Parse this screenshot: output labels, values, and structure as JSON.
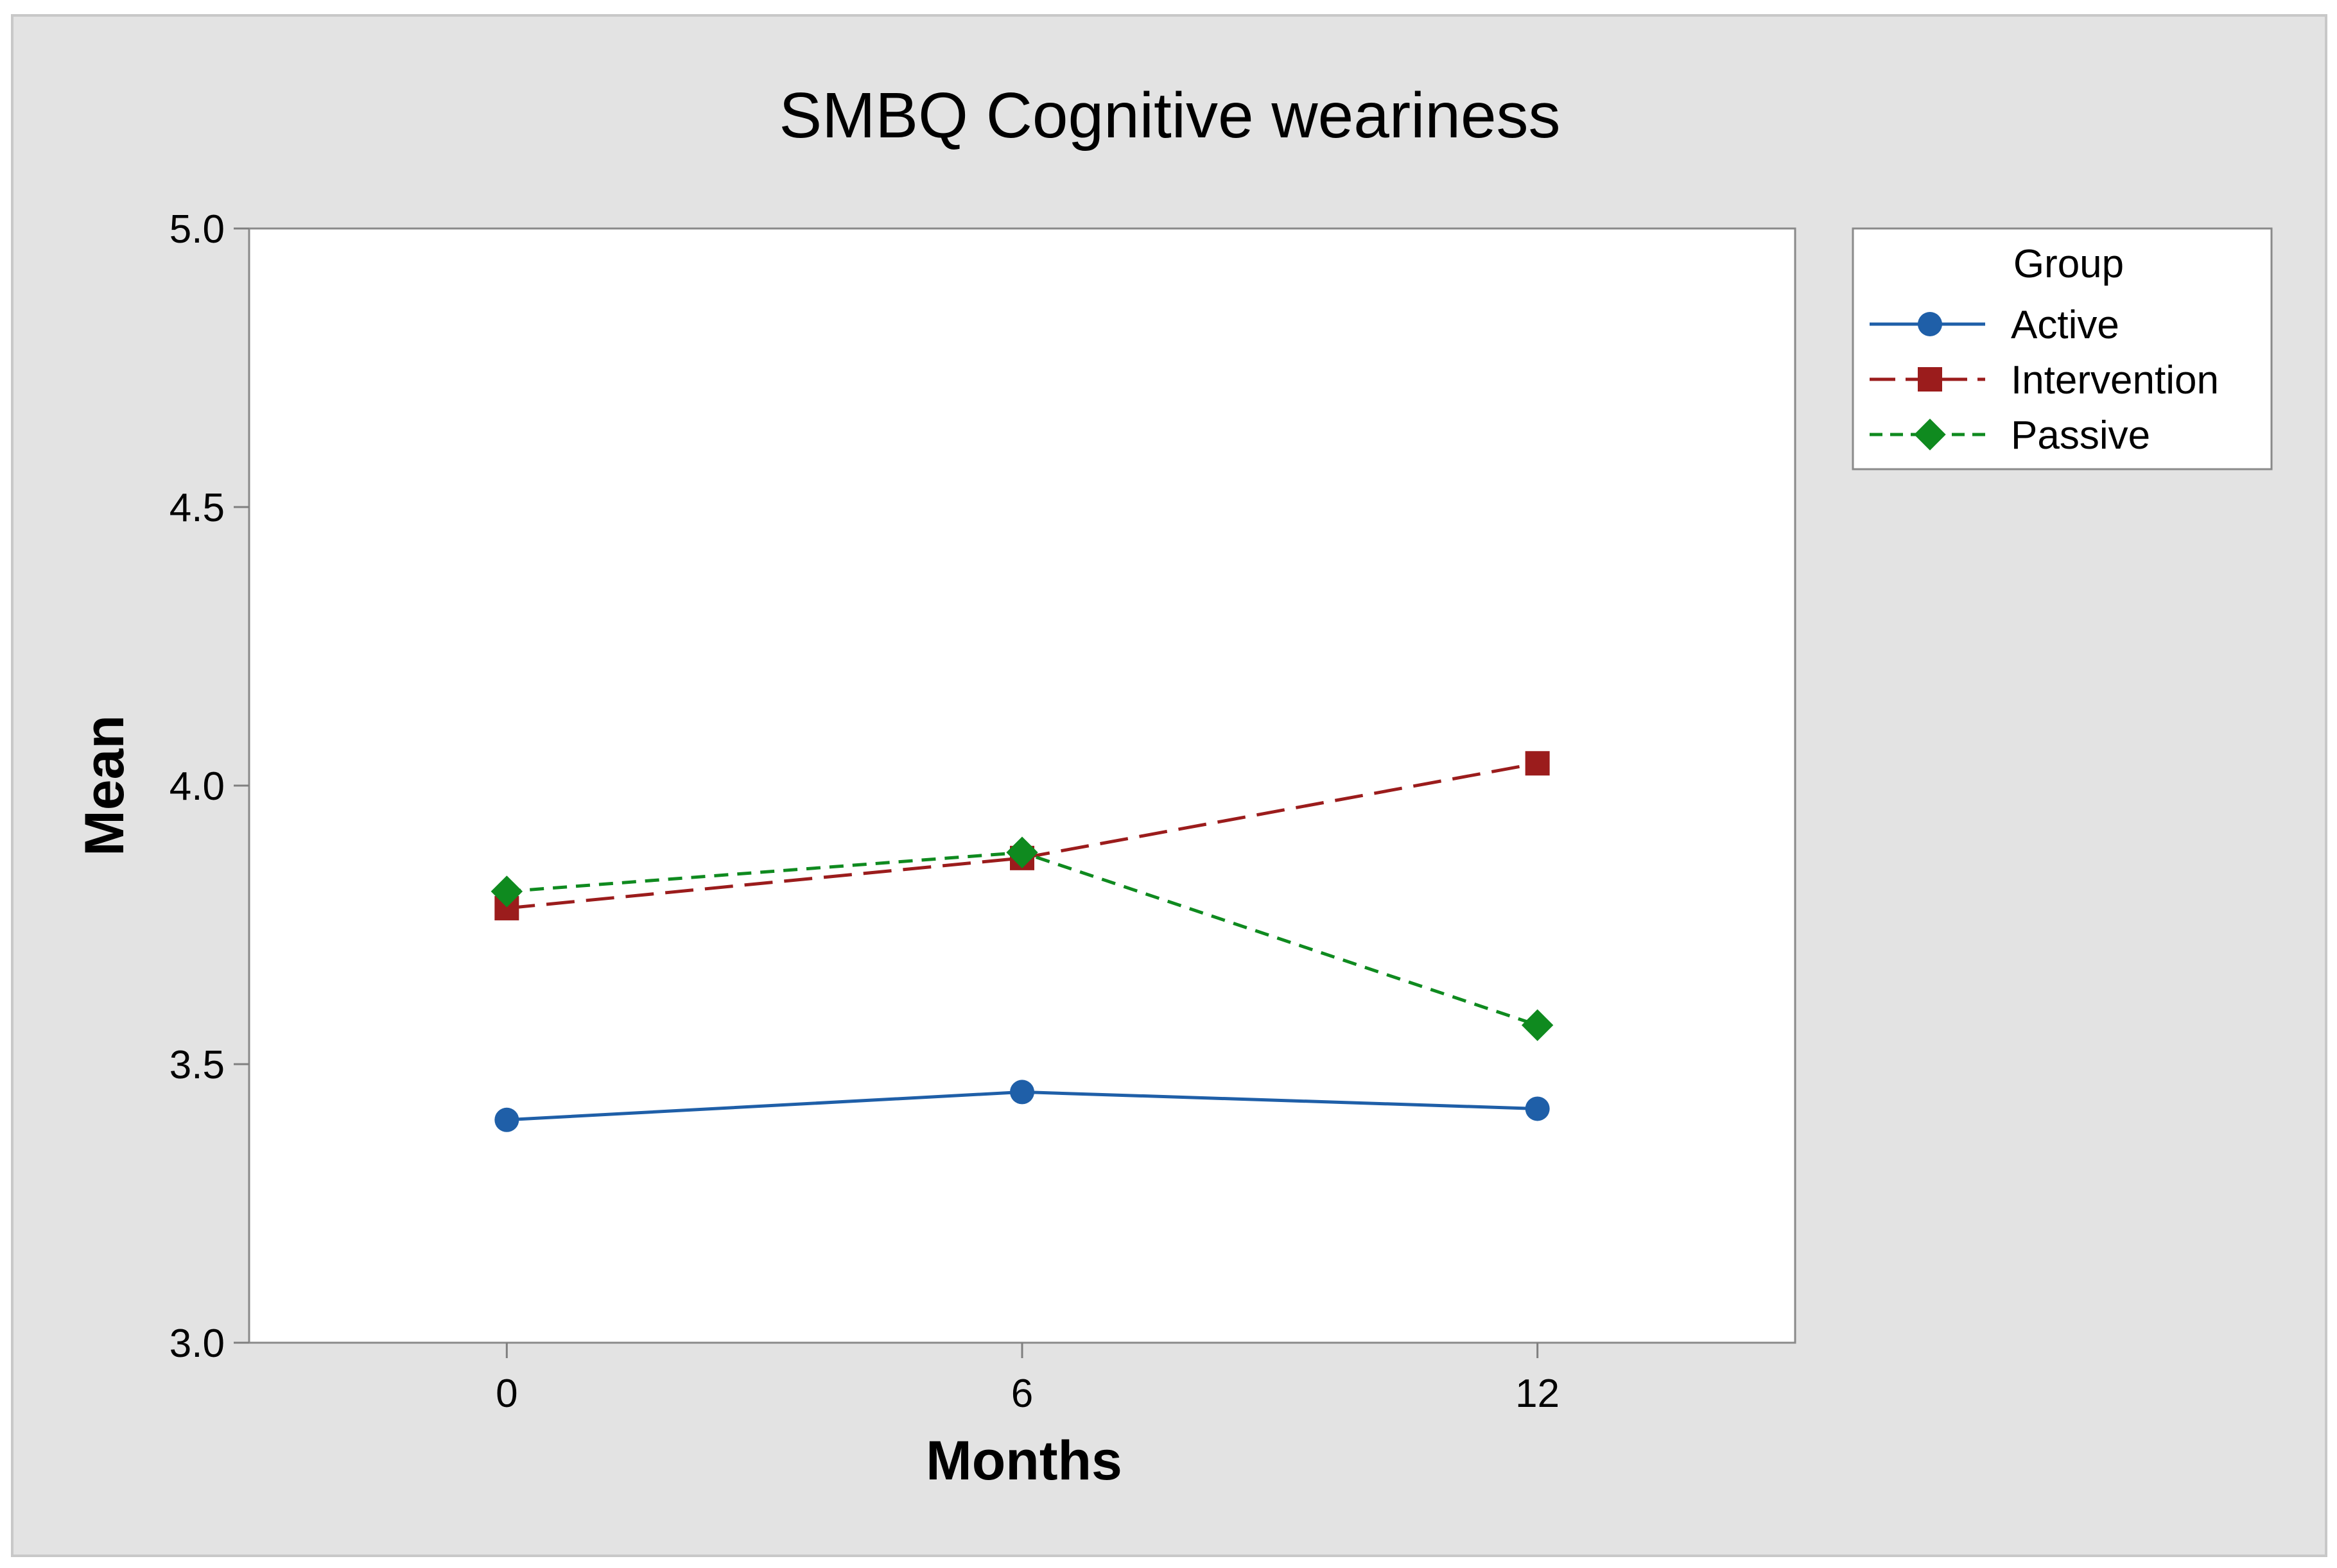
{
  "chart_data": {
    "type": "line",
    "title": "SMBQ Cognitive weariness",
    "xlabel": "Months",
    "ylabel": "Mean",
    "x": [
      0,
      6,
      12
    ],
    "x_ticks": [
      "0",
      "6",
      "12"
    ],
    "xlim": [
      -3,
      15
    ],
    "ylim": [
      3.0,
      5.0
    ],
    "y_ticks": [
      "3.0",
      "3.5",
      "4.0",
      "4.5",
      "5.0"
    ],
    "legend": {
      "title": "Group",
      "placement": "right-top"
    },
    "series": [
      {
        "name": "Active",
        "values": [
          3.4,
          3.45,
          3.42
        ],
        "color": "#1f5fa8",
        "marker": "circle",
        "dash": "solid"
      },
      {
        "name": "Intervention",
        "values": [
          3.78,
          3.87,
          4.04
        ],
        "color": "#9b1c1c",
        "marker": "square",
        "dash": "long-dash"
      },
      {
        "name": "Passive",
        "values": [
          3.81,
          3.88,
          3.57
        ],
        "color": "#0f8a1f",
        "marker": "diamond",
        "dash": "short-dash"
      }
    ]
  },
  "colors": {
    "outer_background": "#e3e3e3",
    "plot_background": "#ffffff",
    "axis": "#7f7f7f"
  }
}
